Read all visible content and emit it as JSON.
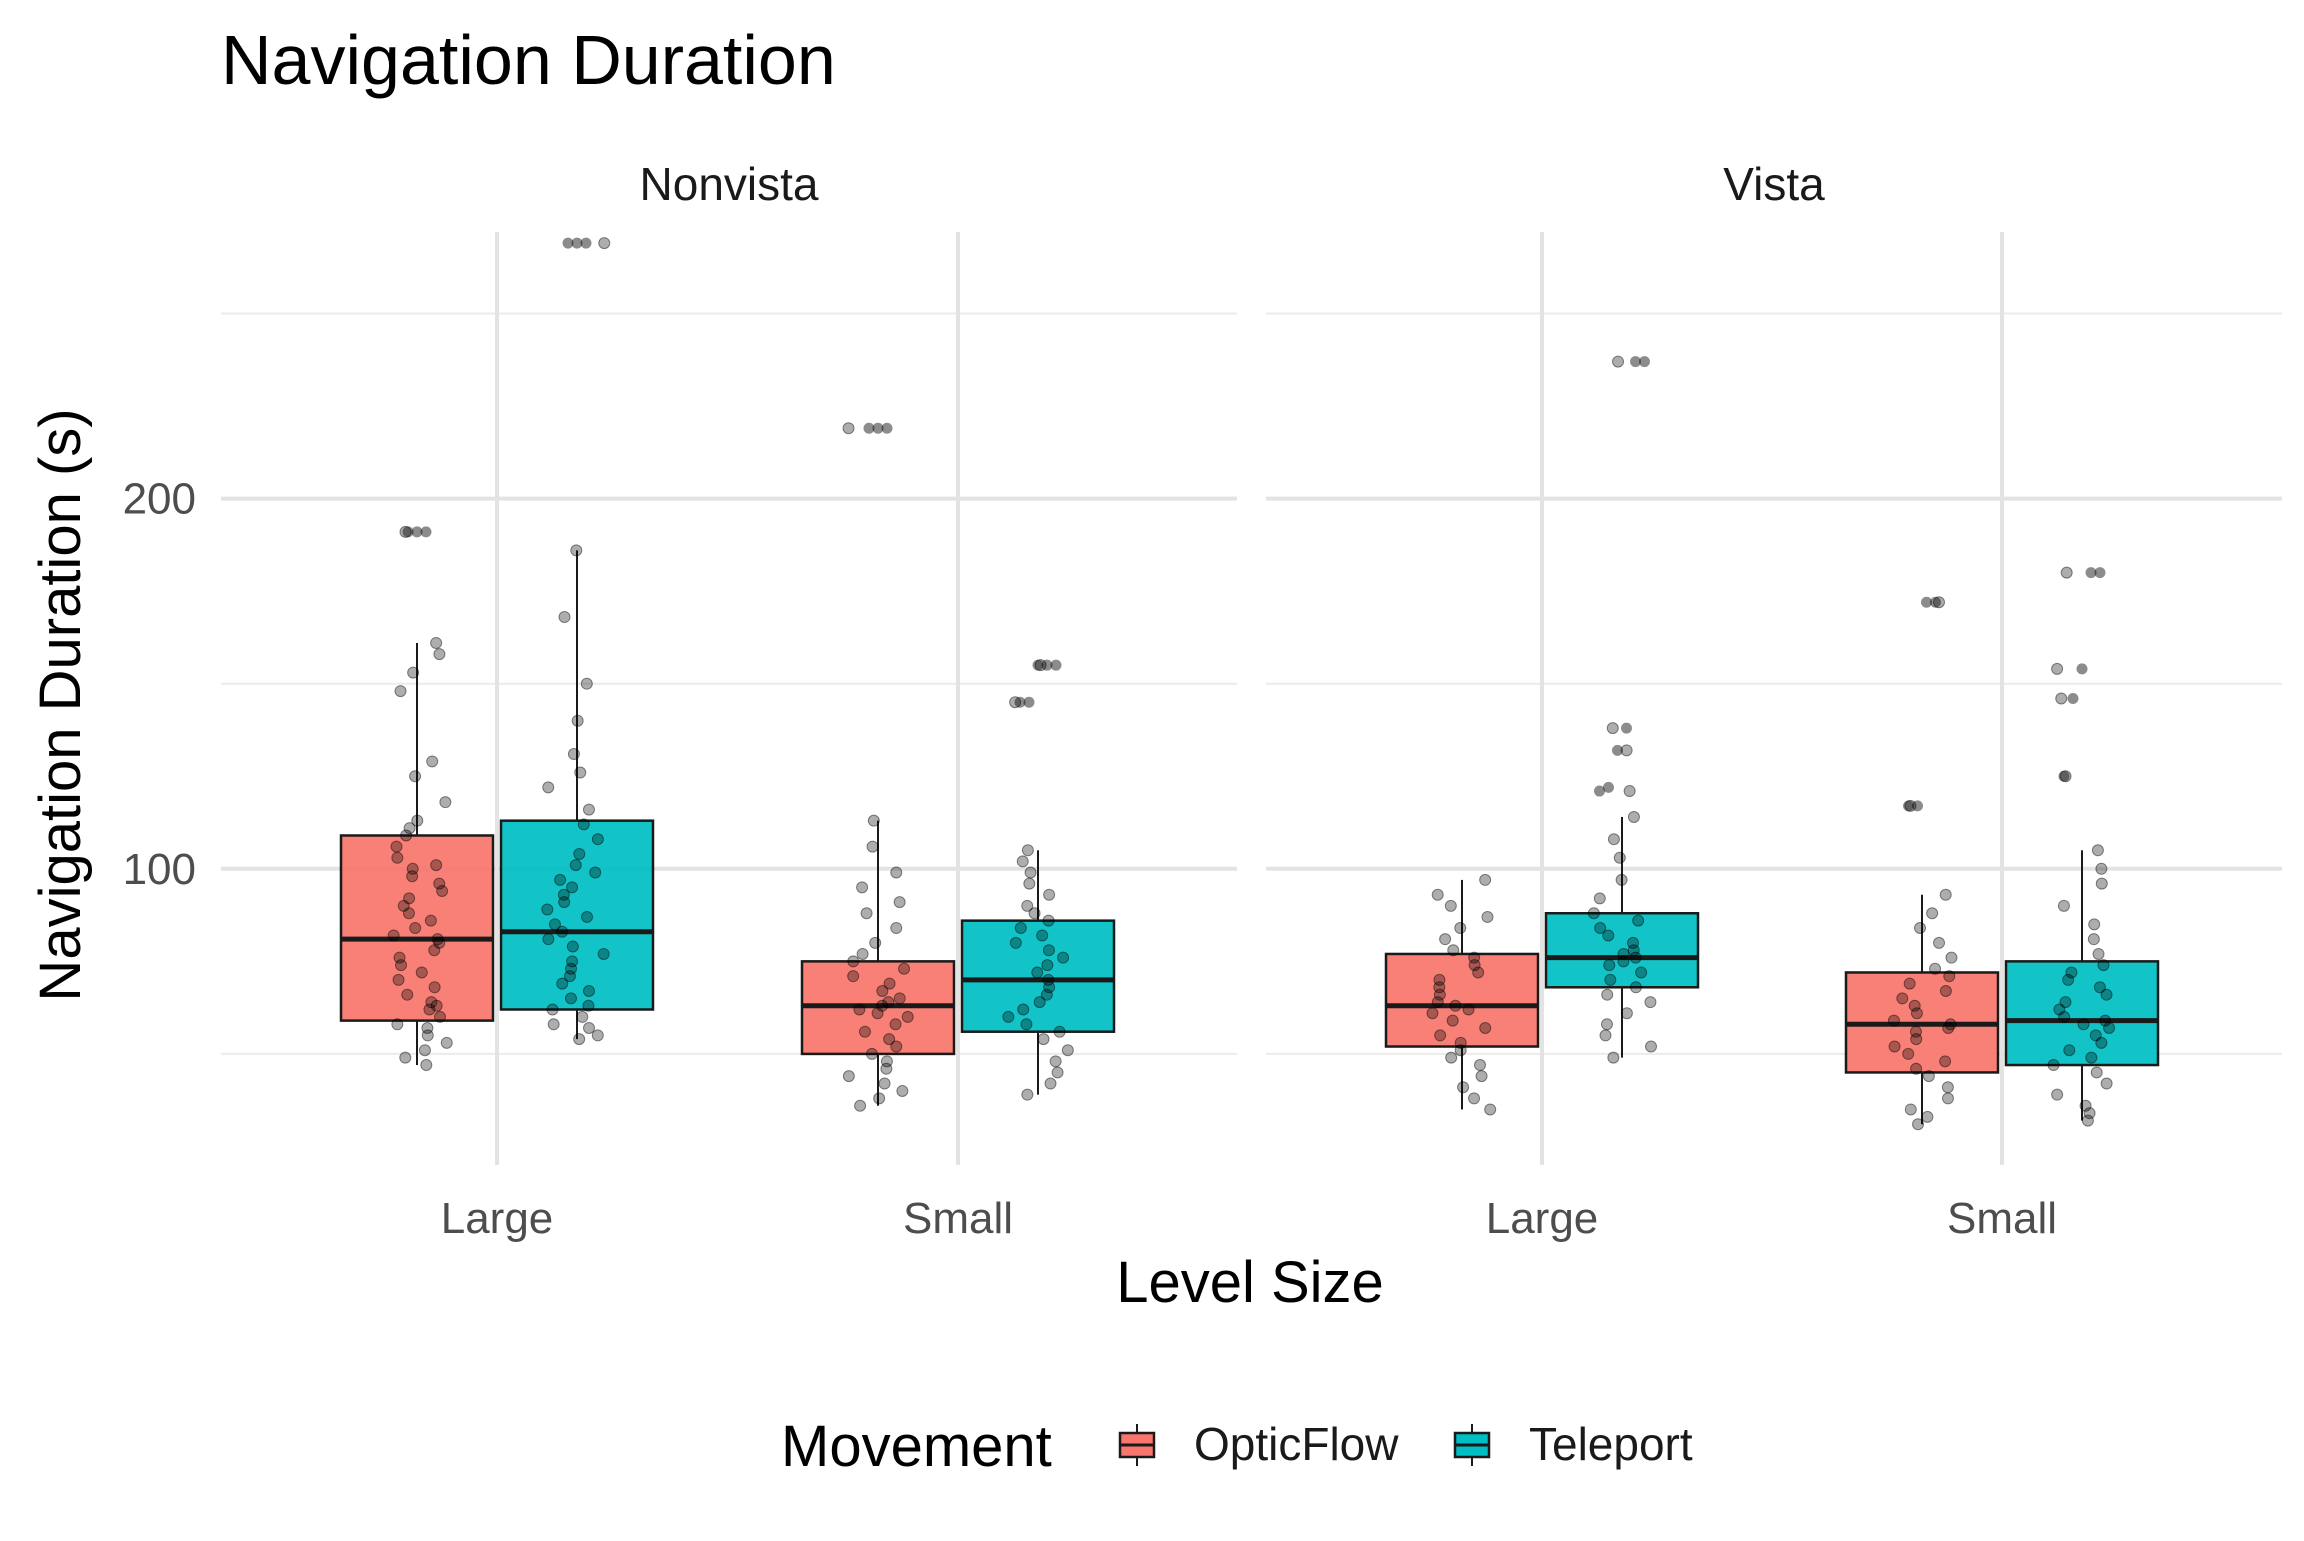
{
  "chart_data": {
    "type": "boxplot",
    "title": "Navigation Duration",
    "xlabel": "Level Size",
    "ylabel": "Navigation Duration (s)",
    "ylim": [
      20,
      272
    ],
    "yticks": [
      100,
      200
    ],
    "grid": true,
    "legend": {
      "title": "Movement",
      "position": "bottom",
      "entries": [
        {
          "name": "OpticFlow",
          "color": "#F8766D"
        },
        {
          "name": "Teleport",
          "color": "#00BFC4"
        }
      ]
    },
    "categories": [
      "Large",
      "Small"
    ],
    "facets": [
      {
        "name": "Nonvista",
        "groups": [
          {
            "category": "Large",
            "series": "OpticFlow",
            "min": 47,
            "q1": 59,
            "median": 81,
            "q3": 109,
            "max": 161,
            "outliers": [
              191,
              191,
              191
            ],
            "points": [
              47,
              49,
              51,
              53,
              55,
              57,
              58,
              60,
              62,
              63,
              64,
              66,
              68,
              70,
              72,
              74,
              76,
              78,
              80,
              81,
              82,
              84,
              86,
              88,
              90,
              92,
              94,
              96,
              98,
              100,
              101,
              103,
              106,
              109,
              111,
              113,
              118,
              125,
              129,
              148,
              153,
              158,
              161,
              191
            ]
          },
          {
            "category": "Large",
            "series": "Teleport",
            "min": 54,
            "q1": 62,
            "median": 83,
            "q3": 113,
            "max": 186,
            "outliers": [
              269,
              269,
              269
            ],
            "points": [
              54,
              55,
              57,
              58,
              60,
              62,
              63,
              65,
              67,
              69,
              71,
              73,
              75,
              77,
              79,
              81,
              83,
              85,
              87,
              89,
              91,
              93,
              95,
              97,
              99,
              101,
              104,
              108,
              112,
              116,
              122,
              126,
              131,
              140,
              150,
              168,
              186,
              269
            ]
          },
          {
            "category": "Small",
            "series": "OpticFlow",
            "min": 36,
            "q1": 50,
            "median": 63,
            "q3": 75,
            "max": 113,
            "outliers": [
              219,
              219,
              219
            ],
            "points": [
              36,
              38,
              40,
              42,
              44,
              46,
              48,
              50,
              52,
              54,
              56,
              58,
              60,
              61,
              62,
              63,
              64,
              65,
              67,
              69,
              71,
              73,
              75,
              77,
              80,
              84,
              88,
              91,
              95,
              99,
              106,
              113,
              219
            ]
          },
          {
            "category": "Small",
            "series": "Teleport",
            "min": 39,
            "q1": 56,
            "median": 70,
            "q3": 86,
            "max": 105,
            "outliers": [
              145,
              145,
              155,
              155,
              155
            ],
            "points": [
              39,
              42,
              45,
              48,
              51,
              54,
              56,
              58,
              60,
              62,
              64,
              66,
              68,
              70,
              72,
              74,
              76,
              78,
              80,
              82,
              84,
              86,
              88,
              90,
              93,
              96,
              99,
              102,
              105,
              145,
              155
            ]
          }
        ]
      },
      {
        "name": "Vista",
        "groups": [
          {
            "category": "Large",
            "series": "OpticFlow",
            "min": 35,
            "q1": 52,
            "median": 63,
            "q3": 77,
            "max": 97,
            "outliers": [],
            "points": [
              35,
              38,
              41,
              44,
              47,
              49,
              51,
              53,
              55,
              57,
              59,
              61,
              62,
              63,
              64,
              66,
              68,
              70,
              72,
              74,
              76,
              78,
              81,
              84,
              87,
              90,
              93,
              97
            ]
          },
          {
            "category": "Large",
            "series": "Teleport",
            "min": 49,
            "q1": 68,
            "median": 76,
            "q3": 88,
            "max": 114,
            "outliers": [
              121,
              122,
              132,
              138,
              237,
              237
            ],
            "points": [
              49,
              52,
              55,
              58,
              61,
              64,
              66,
              68,
              70,
              72,
              74,
              75,
              76,
              77,
              78,
              80,
              82,
              84,
              86,
              88,
              92,
              97,
              103,
              108,
              114,
              121,
              132,
              138,
              237
            ]
          },
          {
            "category": "Small",
            "series": "OpticFlow",
            "min": 31,
            "q1": 45,
            "median": 58,
            "q3": 72,
            "max": 93,
            "outliers": [
              117,
              117,
              172,
              172
            ],
            "points": [
              31,
              33,
              35,
              38,
              41,
              44,
              46,
              48,
              50,
              52,
              54,
              56,
              57,
              58,
              59,
              61,
              63,
              65,
              67,
              69,
              71,
              73,
              76,
              80,
              84,
              88,
              93,
              117,
              172
            ]
          },
          {
            "category": "Small",
            "series": "Teleport",
            "min": 32,
            "q1": 47,
            "median": 59,
            "q3": 75,
            "max": 105,
            "outliers": [
              125,
              146,
              154,
              180,
              180
            ],
            "points": [
              32,
              34,
              36,
              39,
              42,
              45,
              47,
              49,
              51,
              53,
              55,
              57,
              58,
              59,
              60,
              62,
              64,
              66,
              68,
              70,
              72,
              74,
              77,
              81,
              85,
              90,
              96,
              100,
              105,
              125,
              146,
              154,
              180
            ]
          }
        ]
      }
    ]
  }
}
